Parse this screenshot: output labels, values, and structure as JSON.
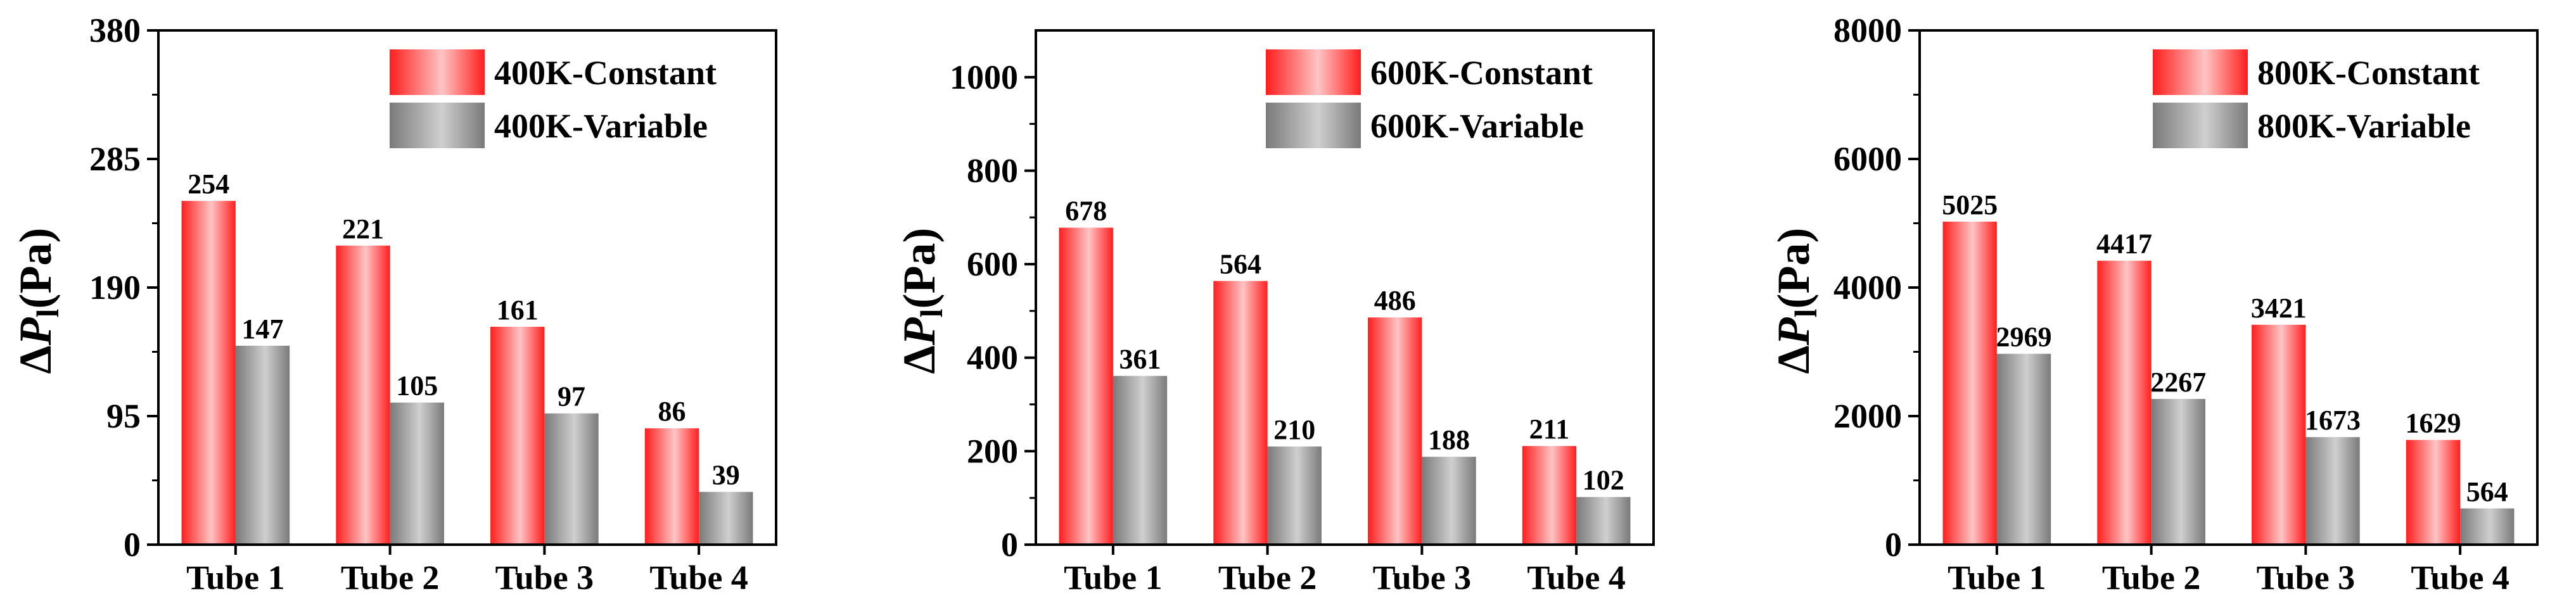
{
  "chart_data": [
    {
      "type": "bar",
      "categories": [
        "Tube 1",
        "Tube 2",
        "Tube 3",
        "Tube 4"
      ],
      "ylabel": {
        "prefix": "Δ",
        "symbol": "P",
        "subscript": "l",
        "suffix": "(Pa)"
      },
      "ylim": [
        0,
        380
      ],
      "yticks": [
        0,
        95,
        190,
        285,
        380
      ],
      "legend_position": "top-right",
      "grid": false,
      "series": [
        {
          "name": "400K-Constant",
          "color": "#ff2a2a",
          "values": [
            254,
            221,
            161,
            86
          ]
        },
        {
          "name": "400K-Variable",
          "color": "#808080",
          "values": [
            147,
            105,
            97,
            39
          ]
        }
      ]
    },
    {
      "type": "bar",
      "categories": [
        "Tube 1",
        "Tube 2",
        "Tube 3",
        "Tube 4"
      ],
      "ylabel": {
        "prefix": "Δ",
        "symbol": "P",
        "subscript": "l",
        "suffix": "(Pa)"
      },
      "ylim": [
        0,
        1100
      ],
      "yticks": [
        0,
        200,
        400,
        600,
        800,
        1000
      ],
      "legend_position": "top-right",
      "grid": false,
      "series": [
        {
          "name": "600K-Constant",
          "color": "#ff2a2a",
          "values": [
            678,
            564,
            486,
            211
          ]
        },
        {
          "name": "600K-Variable",
          "color": "#808080",
          "values": [
            361,
            210,
            188,
            102
          ]
        }
      ]
    },
    {
      "type": "bar",
      "categories": [
        "Tube 1",
        "Tube 2",
        "Tube 3",
        "Tube 4"
      ],
      "ylabel": {
        "prefix": "Δ",
        "symbol": "P",
        "subscript": "l",
        "suffix": "(Pa)"
      },
      "ylim": [
        0,
        8000
      ],
      "yticks": [
        0,
        2000,
        4000,
        6000,
        8000
      ],
      "legend_position": "top-right",
      "grid": false,
      "series": [
        {
          "name": "800K-Constant",
          "color": "#ff2a2a",
          "values": [
            5025,
            4417,
            3421,
            1629
          ]
        },
        {
          "name": "800K-Variable",
          "color": "#808080",
          "values": [
            2969,
            2267,
            1673,
            564
          ]
        }
      ]
    }
  ]
}
